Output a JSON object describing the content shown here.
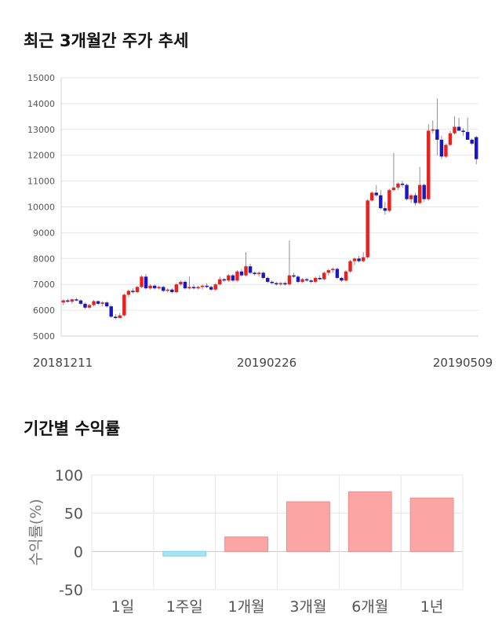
{
  "section_titles": {
    "price_trend": "최근 3개월간 주가 추세",
    "returns": "기간별 수익률"
  },
  "colors": {
    "up": "#e8211d",
    "down": "#1a16c4",
    "return_positive": "#fca5a5",
    "return_negative": "#a8e4ef",
    "grid": "#e6e6e6"
  },
  "chart_data": [
    {
      "type": "candlestick",
      "ylim": [
        5000,
        15000
      ],
      "yticks": [
        5000,
        6000,
        7000,
        8000,
        9000,
        10000,
        11000,
        12000,
        13000,
        14000,
        15000
      ],
      "x_tick_labels": [
        "20181211",
        "20190226",
        "20190509"
      ],
      "grid": true,
      "candles": [
        [
          6300,
          6420,
          6200,
          6380
        ],
        [
          6380,
          6450,
          6300,
          6330
        ],
        [
          6330,
          6450,
          6250,
          6420
        ],
        [
          6420,
          6480,
          6350,
          6380
        ],
        [
          6380,
          6420,
          6200,
          6250
        ],
        [
          6250,
          6300,
          6050,
          6100
        ],
        [
          6100,
          6250,
          6050,
          6200
        ],
        [
          6200,
          6400,
          6150,
          6350
        ],
        [
          6350,
          6380,
          6200,
          6250
        ],
        [
          6250,
          6350,
          6150,
          6300
        ],
        [
          6300,
          6350,
          6100,
          6150
        ],
        [
          6150,
          6200,
          5700,
          5750
        ],
        [
          5750,
          5850,
          5650,
          5700
        ],
        [
          5700,
          5900,
          5700,
          5800
        ],
        [
          5800,
          6650,
          5750,
          6600
        ],
        [
          6600,
          6800,
          6500,
          6750
        ],
        [
          6750,
          6850,
          6650,
          6700
        ],
        [
          6700,
          6950,
          6650,
          6900
        ],
        [
          6900,
          7350,
          6850,
          7300
        ],
        [
          7300,
          7400,
          6800,
          6850
        ],
        [
          6850,
          7000,
          6800,
          6950
        ],
        [
          6950,
          7000,
          6800,
          6850
        ],
        [
          6850,
          6950,
          6800,
          6900
        ],
        [
          6900,
          6950,
          6700,
          6750
        ],
        [
          6750,
          6850,
          6700,
          6800
        ],
        [
          6800,
          6850,
          6650,
          6700
        ],
        [
          6700,
          7050,
          6650,
          7000
        ],
        [
          7000,
          7150,
          6950,
          7100
        ],
        [
          7100,
          7150,
          6800,
          6850
        ],
        [
          6850,
          7300,
          6800,
          6900
        ],
        [
          6900,
          7000,
          6800,
          6850
        ],
        [
          6850,
          6950,
          6800,
          6900
        ],
        [
          6900,
          7000,
          6800,
          6950
        ],
        [
          6950,
          7050,
          6850,
          6900
        ],
        [
          6900,
          6950,
          6750,
          6800
        ],
        [
          6800,
          7050,
          6750,
          7000
        ],
        [
          7000,
          7300,
          6950,
          7200
        ],
        [
          7200,
          7250,
          7100,
          7150
        ],
        [
          7150,
          7400,
          7100,
          7350
        ],
        [
          7350,
          7400,
          7100,
          7150
        ],
        [
          7150,
          7550,
          7100,
          7500
        ],
        [
          7500,
          7600,
          7300,
          7350
        ],
        [
          7350,
          8250,
          7300,
          7700
        ],
        [
          7700,
          7800,
          7400,
          7450
        ],
        [
          7450,
          7500,
          7350,
          7400
        ],
        [
          7400,
          7500,
          7300,
          7450
        ],
        [
          7450,
          7500,
          7200,
          7250
        ],
        [
          7250,
          7300,
          7050,
          7100
        ],
        [
          7100,
          7150,
          7000,
          7050
        ],
        [
          7050,
          7100,
          6950,
          7000
        ],
        [
          7000,
          7100,
          6950,
          7050
        ],
        [
          7050,
          7100,
          6950,
          7000
        ],
        [
          7000,
          8700,
          6950,
          7350
        ],
        [
          7350,
          7450,
          7250,
          7300
        ],
        [
          7300,
          7350,
          7050,
          7100
        ],
        [
          7100,
          7250,
          7050,
          7200
        ],
        [
          7200,
          7250,
          7100,
          7150
        ],
        [
          7150,
          7200,
          7050,
          7100
        ],
        [
          7100,
          7300,
          7050,
          7250
        ],
        [
          7250,
          7350,
          7150,
          7200
        ],
        [
          7200,
          7500,
          7150,
          7450
        ],
        [
          7450,
          7600,
          7350,
          7550
        ],
        [
          7550,
          7650,
          7450,
          7600
        ],
        [
          7600,
          7650,
          7200,
          7250
        ],
        [
          7250,
          7300,
          7100,
          7150
        ],
        [
          7150,
          7550,
          7100,
          7500
        ],
        [
          7500,
          7950,
          7450,
          7900
        ],
        [
          7900,
          8050,
          7750,
          8000
        ],
        [
          8000,
          8100,
          7850,
          7900
        ],
        [
          7900,
          8250,
          7850,
          8050
        ],
        [
          8050,
          10300,
          8000,
          10250
        ],
        [
          10250,
          10600,
          10200,
          10550
        ],
        [
          10550,
          10850,
          10400,
          10450
        ],
        [
          10450,
          10650,
          9900,
          9950
        ],
        [
          9950,
          10200,
          9700,
          9850
        ],
        [
          9850,
          10700,
          9800,
          10650
        ],
        [
          10650,
          12100,
          10600,
          10750
        ],
        [
          10750,
          10950,
          10650,
          10900
        ],
        [
          10900,
          11000,
          10750,
          10850
        ],
        [
          10850,
          10900,
          10250,
          10300
        ],
        [
          10300,
          10500,
          10150,
          10450
        ],
        [
          10450,
          10550,
          10050,
          10150
        ],
        [
          10150,
          11550,
          10100,
          10850
        ],
        [
          10850,
          10900,
          10200,
          10300
        ],
        [
          10300,
          13200,
          10250,
          12950
        ],
        [
          12950,
          13350,
          12850,
          13000
        ],
        [
          13000,
          14200,
          12000,
          12600
        ],
        [
          12600,
          12750,
          11850,
          11950
        ],
        [
          11950,
          12450,
          11900,
          12400
        ],
        [
          12400,
          12950,
          12350,
          12850
        ],
        [
          12850,
          13500,
          12800,
          13100
        ],
        [
          13100,
          13450,
          12950,
          12950
        ],
        [
          12950,
          13050,
          12750,
          12900
        ],
        [
          12900,
          13450,
          12700,
          12600
        ],
        [
          12600,
          12650,
          12400,
          12450
        ],
        [
          12700,
          12750,
          11650,
          11850
        ]
      ]
    },
    {
      "type": "bar",
      "ylabel": "수익률(%)",
      "ylim": [
        -50,
        100
      ],
      "yticks": [
        -50,
        0,
        50,
        100
      ],
      "categories": [
        "1일",
        "1주일",
        "1개월",
        "3개월",
        "6개월",
        "1년"
      ],
      "values": [
        0,
        -6,
        19,
        65,
        78,
        70
      ],
      "grid": true
    }
  ]
}
